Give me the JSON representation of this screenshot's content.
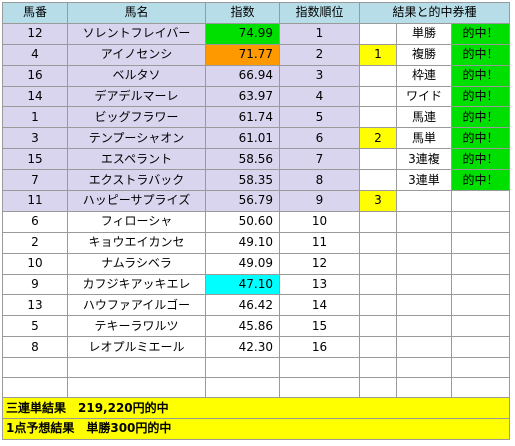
{
  "headers": {
    "no": "馬番",
    "name": "馬名",
    "score": "指数",
    "rank": "指数順位",
    "result": "結果と的中券種"
  },
  "horses": [
    {
      "no": "12",
      "name": "ソレントフレイバー",
      "score": "74.99",
      "rank": "1",
      "place": "",
      "ticket": "単勝",
      "hit": "的中！"
    },
    {
      "no": "4",
      "name": "アイノセンシ",
      "score": "71.77",
      "rank": "2",
      "place": "1",
      "ticket": "複勝",
      "hit": "的中！"
    },
    {
      "no": "16",
      "name": "ベルタソ",
      "score": "66.94",
      "rank": "3",
      "place": "",
      "ticket": "枠連",
      "hit": "的中！"
    },
    {
      "no": "14",
      "name": "デアデルマーレ",
      "score": "63.97",
      "rank": "4",
      "place": "",
      "ticket": "ワイド",
      "hit": "的中！"
    },
    {
      "no": "1",
      "name": "ビッグフラワー",
      "score": "61.74",
      "rank": "5",
      "place": "",
      "ticket": "馬連",
      "hit": "的中！"
    },
    {
      "no": "3",
      "name": "テンプーシャオン",
      "score": "61.01",
      "rank": "6",
      "place": "2",
      "ticket": "馬単",
      "hit": "的中！"
    },
    {
      "no": "15",
      "name": "エスペラント",
      "score": "58.56",
      "rank": "7",
      "place": "",
      "ticket": "3連複",
      "hit": "的中！"
    },
    {
      "no": "7",
      "name": "エクストラバック",
      "score": "58.35",
      "rank": "8",
      "place": "",
      "ticket": "3連単",
      "hit": "的中！"
    },
    {
      "no": "11",
      "name": "ハッピーサプライズ",
      "score": "56.79",
      "rank": "9",
      "place": "3",
      "ticket": "",
      "hit": ""
    },
    {
      "no": "6",
      "name": "フィローシャ",
      "score": "50.60",
      "rank": "10",
      "place": "",
      "ticket": "",
      "hit": ""
    },
    {
      "no": "2",
      "name": "キョウエイカンセ",
      "score": "49.10",
      "rank": "11",
      "place": "",
      "ticket": "",
      "hit": ""
    },
    {
      "no": "10",
      "name": "ナムラシベラ",
      "score": "49.09",
      "rank": "12",
      "place": "",
      "ticket": "",
      "hit": ""
    },
    {
      "no": "9",
      "name": "カフジキアッキエレ",
      "score": "47.10",
      "rank": "13",
      "place": "",
      "ticket": "",
      "hit": ""
    },
    {
      "no": "13",
      "name": "ハウファアイルゴー",
      "score": "46.42",
      "rank": "14",
      "place": "",
      "ticket": "",
      "hit": ""
    },
    {
      "no": "5",
      "name": "テキーラワルツ",
      "score": "45.86",
      "rank": "15",
      "place": "",
      "ticket": "",
      "hit": ""
    },
    {
      "no": "8",
      "name": "レオプルミエール",
      "score": "42.30",
      "rank": "16",
      "place": "",
      "ticket": "",
      "hit": ""
    }
  ],
  "footer": {
    "line1": "三連単結果　219,220円的中",
    "line2": "1点予想結果　単勝300円的中"
  },
  "colors": {
    "header": "#b7dde8",
    "top9": "#d9d5ee",
    "place": "#ffff00",
    "hit": "#00e000",
    "rank1_score": "#00e000",
    "rank2_score": "#ff9900",
    "rank13_score": "#00ffff",
    "footer": "#ffff00"
  }
}
